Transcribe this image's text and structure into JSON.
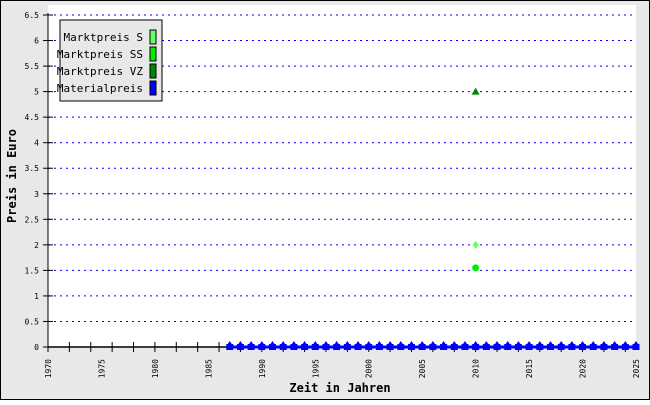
{
  "chart_data": {
    "type": "scatter",
    "xlabel": "Zeit in Jahren",
    "ylabel": "Preis in Euro",
    "xlim": [
      1970,
      2025
    ],
    "ylim": [
      0,
      6.5
    ],
    "x_ticks": [
      1970,
      1975,
      1980,
      1985,
      1990,
      1995,
      2000,
      2005,
      2010,
      2015,
      2020,
      2025
    ],
    "y_ticks": [
      "0",
      "0.5",
      "1",
      "1.5",
      "2",
      "2.5",
      "3",
      "3.5",
      "4",
      "4.5",
      "5",
      "5.5",
      "6",
      "6.5"
    ],
    "grid": true,
    "legend_position": "top-left",
    "series": [
      {
        "name": "Marktpreis S",
        "color": "#66ff66",
        "marker": "diamond",
        "points": [
          [
            2010,
            2
          ]
        ]
      },
      {
        "name": "Marktpreis SS",
        "color": "#00ee00",
        "marker": "circle",
        "points": [
          [
            2010,
            1.55
          ]
        ]
      },
      {
        "name": "Marktpreis VZ",
        "color": "#008800",
        "marker": "triangle",
        "points": [
          [
            2010,
            5
          ]
        ]
      },
      {
        "name": "Materialpreis",
        "color": "#0000ff",
        "marker": "square",
        "points": [
          [
            1987,
            0
          ],
          [
            1988,
            0
          ],
          [
            1989,
            0
          ],
          [
            1990,
            0
          ],
          [
            1991,
            0
          ],
          [
            1992,
            0
          ],
          [
            1993,
            0
          ],
          [
            1994,
            0
          ],
          [
            1995,
            0
          ],
          [
            1996,
            0
          ],
          [
            1997,
            0
          ],
          [
            1998,
            0
          ],
          [
            1999,
            0
          ],
          [
            2000,
            0
          ],
          [
            2001,
            0
          ],
          [
            2002,
            0
          ],
          [
            2003,
            0
          ],
          [
            2004,
            0
          ],
          [
            2005,
            0
          ],
          [
            2006,
            0
          ],
          [
            2007,
            0
          ],
          [
            2008,
            0
          ],
          [
            2009,
            0
          ],
          [
            2010,
            0
          ],
          [
            2011,
            0
          ],
          [
            2012,
            0
          ],
          [
            2013,
            0
          ],
          [
            2014,
            0
          ],
          [
            2015,
            0
          ],
          [
            2016,
            0
          ],
          [
            2017,
            0
          ],
          [
            2018,
            0
          ],
          [
            2019,
            0
          ],
          [
            2020,
            0
          ],
          [
            2021,
            0
          ],
          [
            2022,
            0
          ],
          [
            2023,
            0
          ],
          [
            2024,
            0
          ],
          [
            2025,
            0
          ]
        ]
      }
    ]
  }
}
